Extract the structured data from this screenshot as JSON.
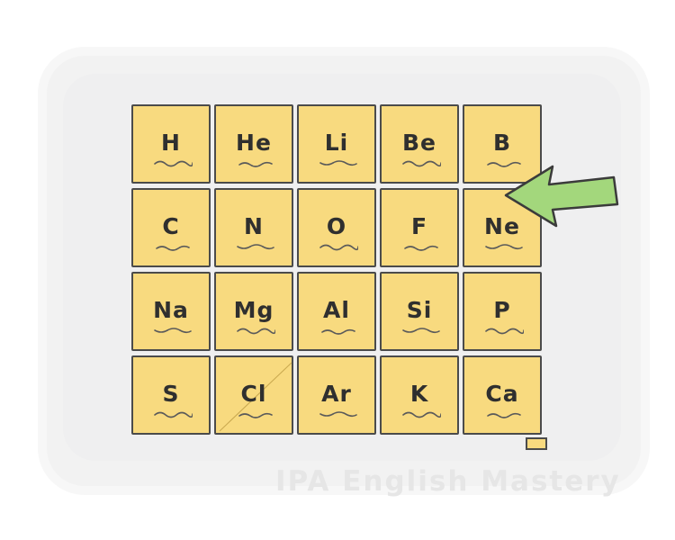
{
  "table": {
    "rows": [
      [
        "H",
        "He",
        "Li",
        "Be",
        "B"
      ],
      [
        "C",
        "N",
        "O",
        "F",
        "Ne"
      ],
      [
        "Na",
        "Mg",
        "Al",
        "Si",
        "P"
      ],
      [
        "S",
        "Cl",
        "Ar",
        "K",
        "Ca"
      ]
    ],
    "highlighted_symbol": "Ne"
  },
  "arrow": {
    "icon": "arrow-left-icon",
    "color": "#a3d77c"
  },
  "watermark": "IPA English Mastery",
  "colors": {
    "tile": "#f8da7f",
    "outline": "#4b4b4b",
    "background": "#f2f2f2"
  }
}
